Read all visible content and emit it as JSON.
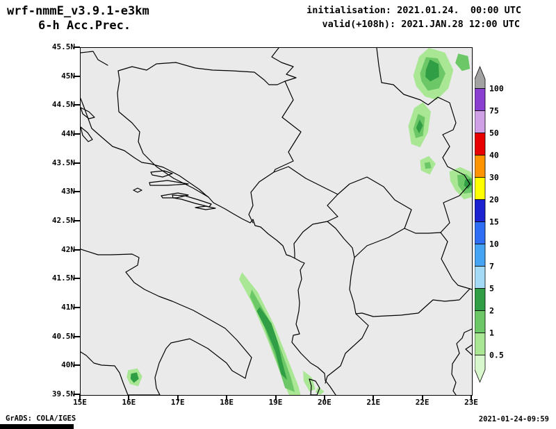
{
  "header": {
    "model_title": "wrf-nmmE_v3.9.1-e3km",
    "product_subtitle": "6-h Acc.Prec.",
    "init_line": "initialisation: 2021.01.24.  00:00 UTC",
    "valid_line": "valid(+108h): 2021.JAN.28 12:00 UTC"
  },
  "footer": {
    "credit": "GrADS: COLA/IGES",
    "timestamp": "2021-01-24-09:59"
  },
  "map_style": {
    "background": "#eaeaea",
    "line_color": "#000000",
    "outside_background": "#ffffff"
  },
  "chart_data": {
    "type": "heatmap",
    "title": "wrf-nmmE_v3.9.1-e3km 6-h Acc.Prec.",
    "x_ticks": [
      "15E",
      "16E",
      "17E",
      "18E",
      "19E",
      "20E",
      "21E",
      "22E",
      "23E"
    ],
    "y_ticks": [
      "45.5N",
      "45N",
      "44.5N",
      "44N",
      "43.5N",
      "43N",
      "42.5N",
      "42N",
      "41.5N",
      "41N",
      "40.5N",
      "40N",
      "39.5N"
    ],
    "lon_range": [
      15,
      23
    ],
    "lat_range": [
      39.5,
      45.5
    ],
    "grid": false,
    "legend_position": "right",
    "colorbar": {
      "boundary_labels": [
        "100",
        "75",
        "50",
        "40",
        "30",
        "20",
        "15",
        "10",
        "7",
        "5",
        "2",
        "1",
        "0.5"
      ],
      "band_colors_top_to_bottom": [
        "#a2a2a2",
        "#8a3fd1",
        "#d0a0e6",
        "#e80000",
        "#ff9400",
        "#ffff00",
        "#1c22d0",
        "#2e6ef5",
        "#46a4f5",
        "#a4daf5",
        "#2f9e44",
        "#6cc766",
        "#a9e795",
        "#d9f7cc"
      ]
    },
    "level_colors": {
      "0.5-1": "#a9e795",
      "1-2": "#6cc766",
      "2-5": "#2f9e44"
    },
    "precip_regions": [
      {
        "name": "adriatic-band-outer",
        "level": "0.5-1",
        "points": [
          [
            18.3,
            41.62
          ],
          [
            18.62,
            41.28
          ],
          [
            18.95,
            40.72
          ],
          [
            19.22,
            40.15
          ],
          [
            19.45,
            39.66
          ],
          [
            19.5,
            39.5
          ],
          [
            19.26,
            39.5
          ],
          [
            19.05,
            39.95
          ],
          [
            18.8,
            40.5
          ],
          [
            18.5,
            41.1
          ],
          [
            18.24,
            41.5
          ]
        ]
      },
      {
        "name": "adriatic-band-mid",
        "level": "1-2",
        "points": [
          [
            18.5,
            41.32
          ],
          [
            18.84,
            40.82
          ],
          [
            19.08,
            40.32
          ],
          [
            19.3,
            39.8
          ],
          [
            19.38,
            39.55
          ],
          [
            19.18,
            39.62
          ],
          [
            19.0,
            40.1
          ],
          [
            18.76,
            40.66
          ],
          [
            18.46,
            41.2
          ]
        ]
      },
      {
        "name": "adriatic-band-core",
        "level": "2-5",
        "points": [
          [
            18.66,
            41.02
          ],
          [
            18.9,
            40.74
          ],
          [
            19.03,
            40.42
          ],
          [
            19.12,
            40.08
          ],
          [
            19.22,
            39.76
          ],
          [
            19.1,
            39.86
          ],
          [
            18.98,
            40.25
          ],
          [
            18.8,
            40.62
          ],
          [
            18.6,
            40.95
          ]
        ]
      },
      {
        "name": "ionian-spot-west",
        "level": "0.5-1",
        "points": [
          [
            19.55,
            39.92
          ],
          [
            19.73,
            39.8
          ],
          [
            19.8,
            39.6
          ],
          [
            19.68,
            39.56
          ],
          [
            19.56,
            39.74
          ]
        ]
      },
      {
        "name": "ionian-spot-east",
        "level": "0.5-1",
        "points": [
          [
            19.86,
            39.64
          ],
          [
            19.98,
            39.56
          ],
          [
            19.9,
            39.5
          ],
          [
            19.8,
            39.55
          ]
        ]
      },
      {
        "name": "calabria-spot",
        "level": "0.5-1",
        "points": [
          [
            15.97,
            39.93
          ],
          [
            16.16,
            39.96
          ],
          [
            16.26,
            39.82
          ],
          [
            16.18,
            39.65
          ],
          [
            16.01,
            39.69
          ],
          [
            15.94,
            39.81
          ]
        ]
      },
      {
        "name": "calabria-core",
        "level": "2-5",
        "points": [
          [
            16.03,
            39.87
          ],
          [
            16.15,
            39.89
          ],
          [
            16.19,
            39.78
          ],
          [
            16.09,
            39.71
          ],
          [
            16.02,
            39.78
          ]
        ]
      },
      {
        "name": "banat-outer",
        "level": "0.5-1",
        "points": [
          [
            21.8,
            45.02
          ],
          [
            21.92,
            45.35
          ],
          [
            22.12,
            45.5
          ],
          [
            22.45,
            45.42
          ],
          [
            22.62,
            45.12
          ],
          [
            22.52,
            44.8
          ],
          [
            22.28,
            44.6
          ],
          [
            22.04,
            44.66
          ],
          [
            21.86,
            44.84
          ]
        ]
      },
      {
        "name": "banat-mid",
        "level": "1-2",
        "points": [
          [
            21.94,
            45.06
          ],
          [
            22.06,
            45.34
          ],
          [
            22.3,
            45.32
          ],
          [
            22.46,
            45.06
          ],
          [
            22.33,
            44.8
          ],
          [
            22.1,
            44.76
          ],
          [
            21.97,
            44.92
          ]
        ]
      },
      {
        "name": "banat-core",
        "level": "2-5",
        "points": [
          [
            22.06,
            45.12
          ],
          [
            22.14,
            45.3
          ],
          [
            22.32,
            45.22
          ],
          [
            22.33,
            45.0
          ],
          [
            22.15,
            44.92
          ],
          [
            22.05,
            45.0
          ]
        ]
      },
      {
        "name": "corner-spot",
        "level": "1-2",
        "points": [
          [
            22.72,
            45.4
          ],
          [
            22.92,
            45.36
          ],
          [
            22.96,
            45.14
          ],
          [
            22.8,
            45.1
          ],
          [
            22.66,
            45.24
          ]
        ]
      },
      {
        "name": "timok-outer",
        "level": "0.5-1",
        "points": [
          [
            21.7,
            44.15
          ],
          [
            21.82,
            44.46
          ],
          [
            22.0,
            44.56
          ],
          [
            22.16,
            44.4
          ],
          [
            22.1,
            44.04
          ],
          [
            21.94,
            43.78
          ],
          [
            21.76,
            43.84
          ]
        ]
      },
      {
        "name": "timok-mid",
        "level": "1-2",
        "points": [
          [
            21.8,
            44.1
          ],
          [
            21.9,
            44.36
          ],
          [
            22.04,
            44.3
          ],
          [
            22.0,
            43.98
          ],
          [
            21.85,
            43.94
          ]
        ]
      },
      {
        "name": "timok-core",
        "level": "2-5",
        "points": [
          [
            21.86,
            44.12
          ],
          [
            21.93,
            44.26
          ],
          [
            22.0,
            44.16
          ],
          [
            21.92,
            44.02
          ]
        ]
      },
      {
        "name": "nis-spot",
        "level": "0.5-1",
        "points": [
          [
            21.94,
            43.56
          ],
          [
            22.12,
            43.63
          ],
          [
            22.26,
            43.5
          ],
          [
            22.14,
            43.31
          ],
          [
            21.96,
            43.38
          ]
        ]
      },
      {
        "name": "nis-mid",
        "level": "1-2",
        "points": [
          [
            22.03,
            43.51
          ],
          [
            22.14,
            43.53
          ],
          [
            22.17,
            43.42
          ],
          [
            22.05,
            43.41
          ]
        ]
      },
      {
        "name": "stara-outer",
        "level": "0.5-1",
        "points": [
          [
            22.54,
            43.36
          ],
          [
            22.76,
            43.44
          ],
          [
            22.97,
            43.36
          ],
          [
            23.0,
            43.3
          ],
          [
            23.0,
            42.92
          ],
          [
            22.84,
            42.88
          ],
          [
            22.66,
            43.04
          ],
          [
            22.56,
            43.2
          ]
        ]
      },
      {
        "name": "stara-mid",
        "level": "1-2",
        "points": [
          [
            22.7,
            43.3
          ],
          [
            22.88,
            43.32
          ],
          [
            23.0,
            43.24
          ],
          [
            23.0,
            43.0
          ],
          [
            22.84,
            42.98
          ],
          [
            22.72,
            43.12
          ]
        ]
      },
      {
        "name": "stara-core",
        "level": "2-5",
        "points": [
          [
            22.86,
            43.22
          ],
          [
            22.97,
            43.24
          ],
          [
            23.0,
            43.14
          ],
          [
            22.92,
            43.06
          ],
          [
            22.84,
            43.12
          ]
        ]
      }
    ]
  }
}
